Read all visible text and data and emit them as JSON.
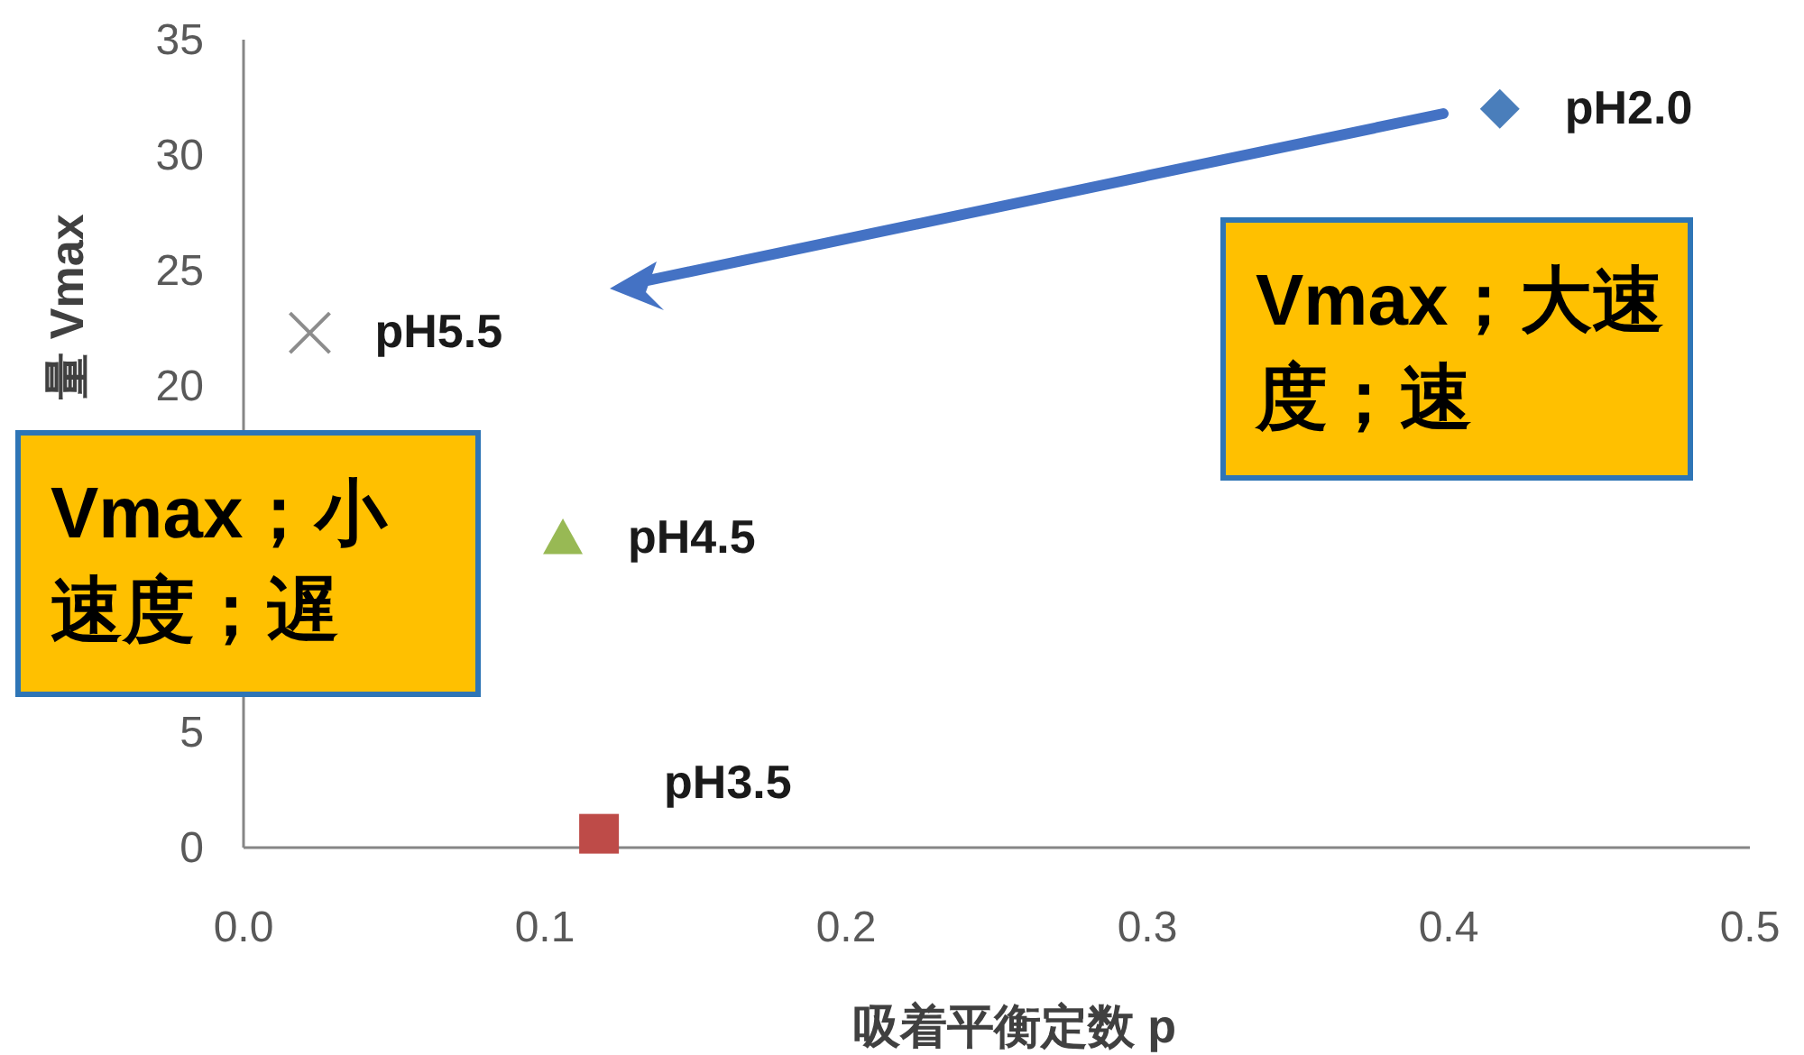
{
  "chart_data": {
    "type": "scatter",
    "xlabel": "吸着平衡定数 p",
    "ylabel": "量 Vmax",
    "xlim": [
      0,
      0.5
    ],
    "ylim": [
      0,
      35
    ],
    "xticks": [
      {
        "value": 0,
        "label": "0.0"
      },
      {
        "value": 0.1,
        "label": "0.1"
      },
      {
        "value": 0.2,
        "label": "0.2"
      },
      {
        "value": 0.3,
        "label": "0.3"
      },
      {
        "value": 0.4,
        "label": "0.4"
      },
      {
        "value": 0.5,
        "label": "0.5"
      }
    ],
    "yticks": [
      0,
      5,
      20,
      25,
      30,
      35
    ],
    "series": [
      {
        "name": "pH2.0",
        "color": "#4a7ebb",
        "marker": "diamond",
        "x": [
          0.417
        ],
        "values": [
          32.0
        ]
      },
      {
        "name": "pH3.5",
        "color": "#be4b48",
        "marker": "square",
        "x": [
          0.118
        ],
        "values": [
          0.6
        ]
      },
      {
        "name": "pH4.5",
        "color": "#98b954",
        "marker": "triangle",
        "x": [
          0.106
        ],
        "values": [
          13.4
        ]
      },
      {
        "name": "pH5.5",
        "color": "#8c8c8c",
        "marker": "cross",
        "x": [
          0.022
        ],
        "values": [
          22.3
        ]
      }
    ],
    "annotations": [
      "Vmax；大速度；速",
      "Vmax；小速度；遅"
    ]
  }
}
